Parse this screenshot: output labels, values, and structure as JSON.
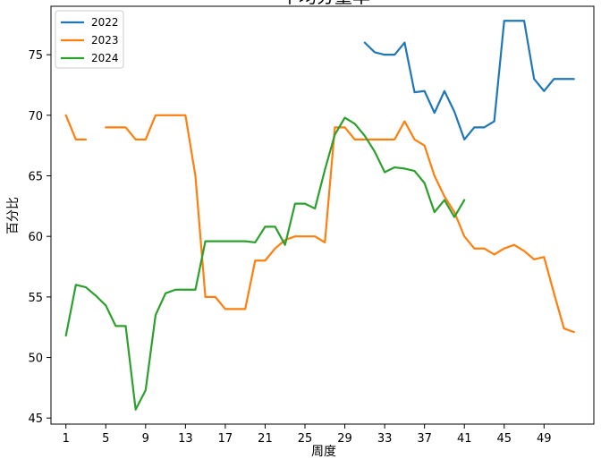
{
  "chart_data": {
    "type": "line",
    "title": "平均分量率",
    "xlabel": "周度",
    "ylabel": "百分比",
    "xlim": [
      -0.5,
      54
    ],
    "ylim": [
      44.5,
      79
    ],
    "xticks": [
      1,
      5,
      9,
      13,
      17,
      21,
      25,
      29,
      33,
      37,
      41,
      45,
      49
    ],
    "yticks": [
      45,
      50,
      55,
      60,
      65,
      70,
      75
    ],
    "legend_position": "top-left",
    "grid": false,
    "series": [
      {
        "name": "2022",
        "color": "#1f77b4",
        "points": [
          [
            31,
            76
          ],
          [
            32,
            75.2
          ],
          [
            33,
            75
          ],
          [
            34,
            75
          ],
          [
            35,
            76
          ],
          [
            36,
            71.9
          ],
          [
            37,
            72
          ],
          [
            38,
            70.2
          ],
          [
            39,
            72
          ],
          [
            40,
            70.3
          ],
          [
            41,
            68
          ],
          [
            42,
            69
          ],
          [
            43,
            69
          ],
          [
            44,
            69.5
          ],
          [
            45,
            77.8
          ],
          [
            46,
            77.8
          ],
          [
            47,
            77.8
          ],
          [
            48,
            73
          ],
          [
            49,
            72
          ],
          [
            50,
            73
          ],
          [
            51,
            73
          ],
          [
            52,
            73
          ]
        ]
      },
      {
        "name": "2023",
        "color": "#ff7f0e",
        "points": [
          [
            1,
            70
          ],
          [
            2,
            68
          ],
          [
            3,
            68
          ],
          [
            null,
            null
          ],
          [
            5,
            69
          ],
          [
            6,
            69
          ],
          [
            7,
            69
          ],
          [
            8,
            68
          ],
          [
            9,
            68
          ],
          [
            10,
            70
          ],
          [
            11,
            70
          ],
          [
            12,
            70
          ],
          [
            13,
            70
          ],
          [
            14,
            65
          ],
          [
            15,
            55
          ],
          [
            16,
            55
          ],
          [
            17,
            54
          ],
          [
            18,
            54
          ],
          [
            19,
            54
          ],
          [
            20,
            58
          ],
          [
            21,
            58
          ],
          [
            22,
            59
          ],
          [
            23,
            59.7
          ],
          [
            24,
            60
          ],
          [
            25,
            60
          ],
          [
            26,
            60
          ],
          [
            27,
            59.5
          ],
          [
            28,
            69
          ],
          [
            29,
            69
          ],
          [
            30,
            68
          ],
          [
            31,
            68
          ],
          [
            32,
            68
          ],
          [
            33,
            68
          ],
          [
            34,
            68
          ],
          [
            35,
            69.5
          ],
          [
            36,
            68
          ],
          [
            37,
            67.5
          ],
          [
            38,
            65
          ],
          [
            39,
            63.3
          ],
          [
            40,
            62
          ],
          [
            41,
            60
          ],
          [
            42,
            59
          ],
          [
            43,
            59
          ],
          [
            44,
            58.5
          ],
          [
            45,
            59
          ],
          [
            46,
            59.3
          ],
          [
            47,
            58.8
          ],
          [
            48,
            58.1
          ],
          [
            49,
            58.3
          ],
          [
            50,
            55.3
          ],
          [
            51,
            52.4
          ],
          [
            52,
            52.1
          ]
        ]
      },
      {
        "name": "2024",
        "color": "#2ca02c",
        "points": [
          [
            1,
            51.8
          ],
          [
            2,
            56
          ],
          [
            3,
            55.8
          ],
          [
            4,
            55.1
          ],
          [
            5,
            54.3
          ],
          [
            6,
            52.6
          ],
          [
            7,
            52.6
          ],
          [
            8,
            45.7
          ],
          [
            9,
            47.3
          ],
          [
            10,
            53.5
          ],
          [
            11,
            55.3
          ],
          [
            12,
            55.6
          ],
          [
            13,
            55.6
          ],
          [
            14,
            55.6
          ],
          [
            15,
            59.6
          ],
          [
            16,
            59.6
          ],
          [
            17,
            59.6
          ],
          [
            18,
            59.6
          ],
          [
            19,
            59.6
          ],
          [
            20,
            59.5
          ],
          [
            21,
            60.8
          ],
          [
            22,
            60.8
          ],
          [
            23,
            59.3
          ],
          [
            24,
            62.7
          ],
          [
            25,
            62.7
          ],
          [
            26,
            62.3
          ],
          [
            27,
            65.5
          ],
          [
            28,
            68.4
          ],
          [
            29,
            69.8
          ],
          [
            30,
            69.3
          ],
          [
            31,
            68.3
          ],
          [
            32,
            67
          ],
          [
            33,
            65.3
          ],
          [
            34,
            65.7
          ],
          [
            35,
            65.6
          ],
          [
            36,
            65.4
          ],
          [
            37,
            64.4
          ],
          [
            38,
            62
          ],
          [
            39,
            63
          ],
          [
            40,
            61.6
          ],
          [
            41,
            63
          ]
        ]
      }
    ]
  }
}
